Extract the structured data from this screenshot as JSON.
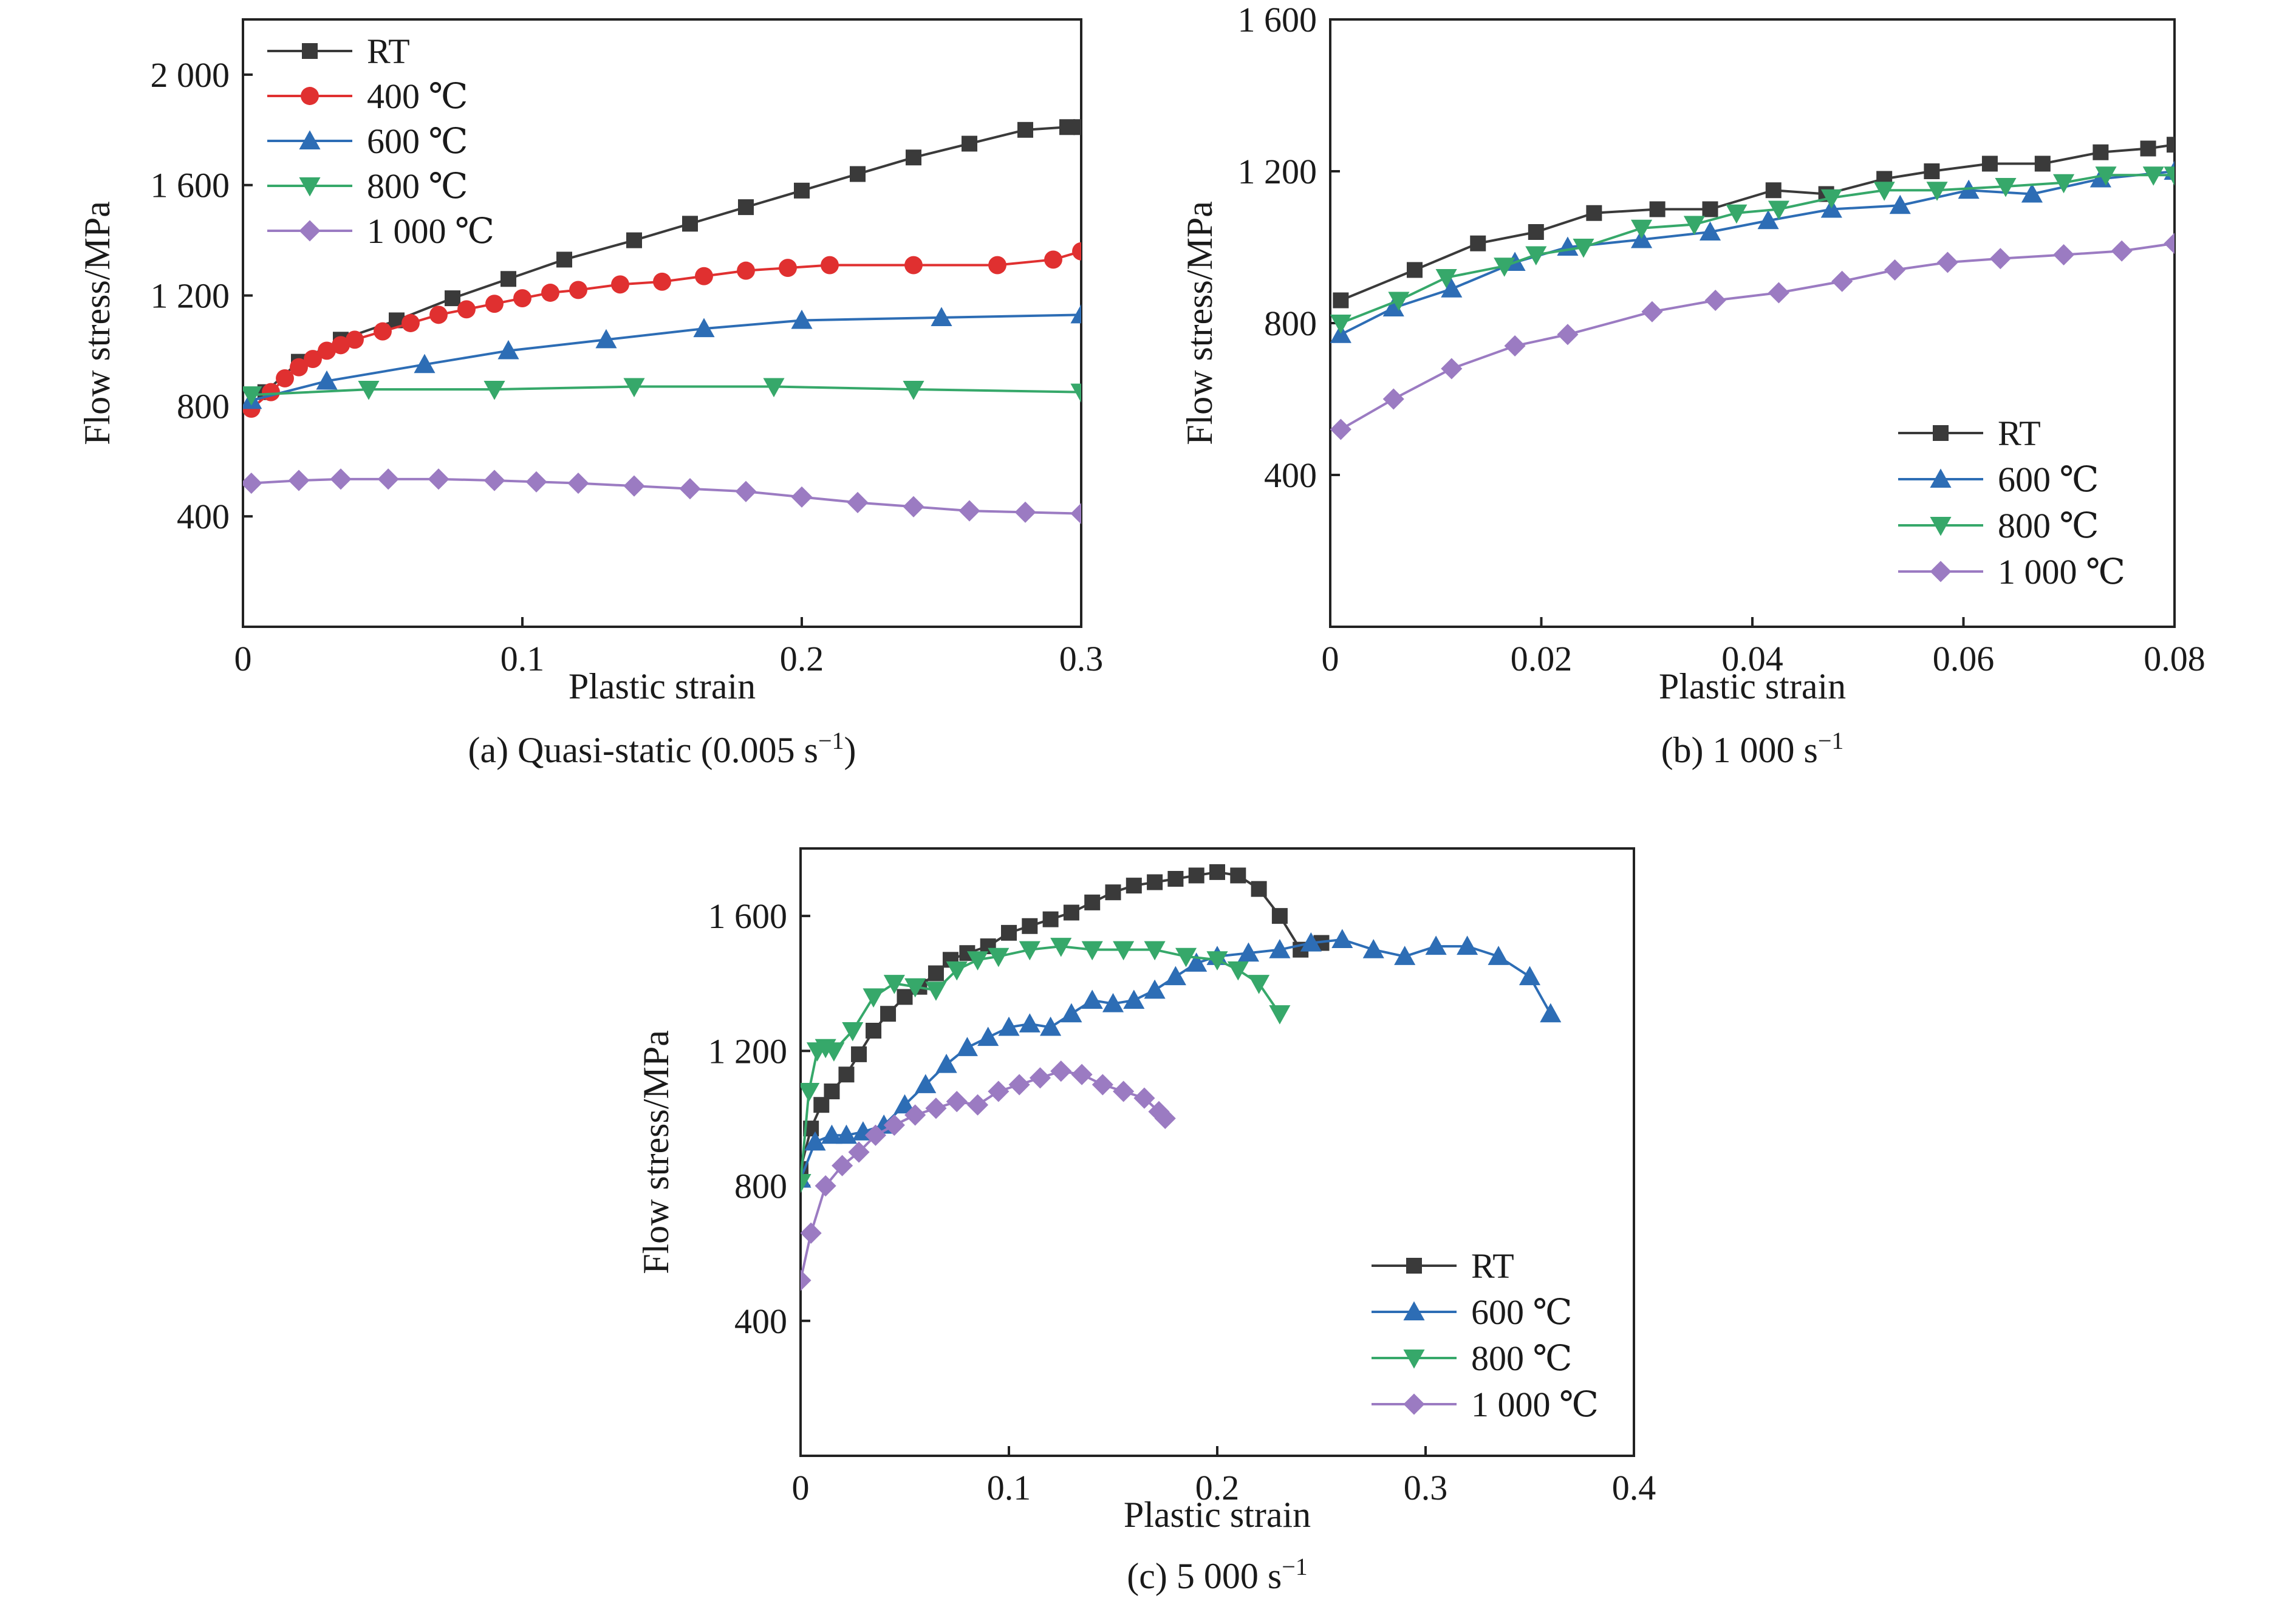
{
  "series_styles": [
    {
      "name": "RT",
      "color": "#3a3a3a",
      "marker": "square"
    },
    {
      "name": "400 ℃",
      "color": "#e03030",
      "marker": "circle"
    },
    {
      "name": "600 ℃",
      "color": "#2d6db5",
      "marker": "triangle-up"
    },
    {
      "name": "800 ℃",
      "color": "#36a86a",
      "marker": "triangle-down"
    },
    {
      "name": "1 000 ℃",
      "color": "#9b7bc2",
      "marker": "diamond"
    }
  ],
  "chart_data": [
    {
      "type": "line",
      "caption": "(a) Quasi-static (0.005 s",
      "caption_sup": "−1",
      "caption_tail": ")",
      "xlabel": "Plastic strain",
      "ylabel": "Flow stress/MPa",
      "xlim": [
        0,
        0.3
      ],
      "ylim": [
        0,
        2200
      ],
      "xticks": [
        0,
        0.1,
        0.2,
        0.3
      ],
      "xtick_labels": [
        "0",
        "0.1",
        "0.2",
        "0.3"
      ],
      "yticks": [
        400,
        800,
        1200,
        1600,
        2000
      ],
      "ytick_labels": [
        "400",
        "800",
        "1 200",
        "1 600",
        "2 000"
      ],
      "legend_position": "top-left",
      "series": [
        {
          "name": "RT",
          "x": [
            0.008,
            0.02,
            0.035,
            0.055,
            0.075,
            0.095,
            0.115,
            0.14,
            0.16,
            0.18,
            0.2,
            0.22,
            0.24,
            0.26,
            0.28,
            0.295,
            0.3
          ],
          "y": [
            850,
            960,
            1040,
            1110,
            1190,
            1260,
            1330,
            1400,
            1460,
            1520,
            1580,
            1640,
            1700,
            1750,
            1800,
            1810,
            1810
          ]
        },
        {
          "name": "400 ℃",
          "x": [
            0.003,
            0.01,
            0.015,
            0.02,
            0.025,
            0.03,
            0.035,
            0.04,
            0.05,
            0.06,
            0.07,
            0.08,
            0.09,
            0.1,
            0.11,
            0.12,
            0.135,
            0.15,
            0.165,
            0.18,
            0.195,
            0.21,
            0.24,
            0.27,
            0.29,
            0.3
          ],
          "y": [
            790,
            850,
            900,
            940,
            970,
            1000,
            1020,
            1040,
            1070,
            1100,
            1130,
            1150,
            1170,
            1190,
            1210,
            1220,
            1240,
            1250,
            1270,
            1290,
            1300,
            1310,
            1310,
            1310,
            1330,
            1360
          ]
        },
        {
          "name": "600 ℃",
          "x": [
            0.003,
            0.03,
            0.065,
            0.095,
            0.13,
            0.165,
            0.2,
            0.25,
            0.3
          ],
          "y": [
            820,
            890,
            950,
            1000,
            1040,
            1080,
            1110,
            1120,
            1130
          ]
        },
        {
          "name": "800 ℃",
          "x": [
            0.003,
            0.045,
            0.09,
            0.14,
            0.19,
            0.24,
            0.3
          ],
          "y": [
            840,
            860,
            860,
            870,
            870,
            860,
            850
          ]
        },
        {
          "name": "1 000 ℃",
          "x": [
            0.003,
            0.02,
            0.035,
            0.052,
            0.07,
            0.09,
            0.105,
            0.12,
            0.14,
            0.16,
            0.18,
            0.2,
            0.22,
            0.24,
            0.26,
            0.28,
            0.3
          ],
          "y": [
            520,
            530,
            535,
            535,
            535,
            530,
            525,
            520,
            510,
            500,
            490,
            470,
            450,
            435,
            420,
            415,
            410
          ]
        }
      ]
    },
    {
      "type": "line",
      "caption": "(b) 1 000 s",
      "caption_sup": "−1",
      "caption_tail": "",
      "xlabel": "Plastic strain",
      "ylabel": "Flow stress/MPa",
      "xlim": [
        0,
        0.08
      ],
      "ylim": [
        0,
        1600
      ],
      "xticks": [
        0,
        0.02,
        0.04,
        0.06,
        0.08
      ],
      "xtick_labels": [
        "0",
        "0.02",
        "0.04",
        "0.06",
        "0.08"
      ],
      "yticks": [
        400,
        800,
        1200,
        1600
      ],
      "ytick_labels": [
        "400",
        "800",
        "1 200",
        "1 600"
      ],
      "legend_position": "bottom-right",
      "series": [
        {
          "name": "RT",
          "x": [
            0.001,
            0.008,
            0.014,
            0.0195,
            0.025,
            0.031,
            0.036,
            0.042,
            0.047,
            0.0525,
            0.057,
            0.0625,
            0.0675,
            0.073,
            0.0775,
            0.08
          ],
          "y": [
            860,
            940,
            1010,
            1040,
            1090,
            1100,
            1100,
            1150,
            1140,
            1180,
            1200,
            1220,
            1220,
            1250,
            1260,
            1270
          ]
        },
        {
          "name": "600 ℃",
          "x": [
            0.001,
            0.006,
            0.0115,
            0.0175,
            0.0225,
            0.0295,
            0.036,
            0.0415,
            0.0475,
            0.054,
            0.0605,
            0.0665,
            0.073,
            0.08
          ],
          "y": [
            770,
            840,
            890,
            960,
            1000,
            1020,
            1040,
            1070,
            1100,
            1110,
            1150,
            1140,
            1180,
            1200
          ]
        },
        {
          "name": "800 ℃",
          "x": [
            0.001,
            0.0065,
            0.011,
            0.0165,
            0.0195,
            0.024,
            0.0295,
            0.0345,
            0.0385,
            0.0425,
            0.0475,
            0.0525,
            0.0575,
            0.064,
            0.0695,
            0.0735,
            0.078,
            0.08
          ],
          "y": [
            800,
            860,
            920,
            950,
            980,
            1000,
            1050,
            1060,
            1090,
            1100,
            1130,
            1150,
            1150,
            1160,
            1170,
            1190,
            1190,
            1190
          ]
        },
        {
          "name": "1 000 ℃",
          "x": [
            0.001,
            0.006,
            0.0115,
            0.0175,
            0.0225,
            0.0305,
            0.0365,
            0.0425,
            0.0485,
            0.0535,
            0.0585,
            0.0635,
            0.0695,
            0.075,
            0.08
          ],
          "y": [
            520,
            600,
            680,
            740,
            770,
            830,
            860,
            880,
            910,
            940,
            960,
            970,
            980,
            990,
            1010
          ]
        }
      ]
    },
    {
      "type": "line",
      "caption": "(c) 5 000 s",
      "caption_sup": "−1",
      "caption_tail": "",
      "xlabel": "Plastic strain",
      "ylabel": "Flow stress/MPa",
      "xlim": [
        0,
        0.4
      ],
      "ylim": [
        0,
        1800
      ],
      "xticks": [
        0,
        0.1,
        0.2,
        0.3,
        0.4
      ],
      "xtick_labels": [
        "0",
        "0.1",
        "0.2",
        "0.3",
        "0.4"
      ],
      "yticks": [
        400,
        800,
        1200,
        1600
      ],
      "ytick_labels": [
        "400",
        "800",
        "1 200",
        "1 600"
      ],
      "legend_position": "bottom-right",
      "series": [
        {
          "name": "RT",
          "x": [
            0,
            0.005,
            0.01,
            0.015,
            0.022,
            0.028,
            0.035,
            0.042,
            0.05,
            0.057,
            0.065,
            0.072,
            0.08,
            0.09,
            0.1,
            0.11,
            0.12,
            0.13,
            0.14,
            0.15,
            0.16,
            0.17,
            0.18,
            0.19,
            0.2,
            0.21,
            0.22,
            0.23,
            0.24,
            0.25
          ],
          "y": [
            850,
            970,
            1040,
            1080,
            1130,
            1190,
            1260,
            1310,
            1360,
            1390,
            1430,
            1470,
            1490,
            1510,
            1550,
            1570,
            1590,
            1610,
            1640,
            1670,
            1690,
            1700,
            1710,
            1720,
            1730,
            1720,
            1680,
            1600,
            1500,
            1520
          ]
        },
        {
          "name": "600 ℃",
          "x": [
            0,
            0.007,
            0.015,
            0.022,
            0.03,
            0.04,
            0.05,
            0.06,
            0.07,
            0.08,
            0.09,
            0.1,
            0.11,
            0.12,
            0.13,
            0.14,
            0.15,
            0.16,
            0.17,
            0.18,
            0.19,
            0.2,
            0.215,
            0.23,
            0.245,
            0.26,
            0.275,
            0.29,
            0.305,
            0.32,
            0.335,
            0.35,
            0.36
          ],
          "y": [
            820,
            930,
            950,
            950,
            960,
            980,
            1040,
            1100,
            1160,
            1210,
            1240,
            1270,
            1280,
            1270,
            1310,
            1350,
            1340,
            1350,
            1380,
            1420,
            1460,
            1480,
            1490,
            1500,
            1520,
            1530,
            1500,
            1480,
            1510,
            1510,
            1480,
            1420,
            1310
          ]
        },
        {
          "name": "800 ℃",
          "x": [
            0,
            0.004,
            0.008,
            0.012,
            0.016,
            0.025,
            0.035,
            0.045,
            0.055,
            0.065,
            0.075,
            0.085,
            0.095,
            0.11,
            0.125,
            0.14,
            0.155,
            0.17,
            0.185,
            0.2,
            0.21,
            0.22,
            0.23
          ],
          "y": [
            810,
            1080,
            1200,
            1210,
            1200,
            1260,
            1360,
            1400,
            1390,
            1380,
            1440,
            1470,
            1480,
            1500,
            1510,
            1500,
            1500,
            1500,
            1480,
            1470,
            1440,
            1400,
            1310
          ]
        },
        {
          "name": "1 000 ℃",
          "x": [
            0,
            0.005,
            0.012,
            0.02,
            0.028,
            0.036,
            0.045,
            0.055,
            0.065,
            0.075,
            0.085,
            0.095,
            0.105,
            0.115,
            0.125,
            0.135,
            0.145,
            0.155,
            0.165,
            0.172,
            0.175
          ],
          "y": [
            520,
            660,
            800,
            860,
            900,
            950,
            980,
            1010,
            1030,
            1050,
            1040,
            1080,
            1100,
            1120,
            1140,
            1130,
            1100,
            1080,
            1060,
            1020,
            1000
          ]
        }
      ]
    }
  ]
}
